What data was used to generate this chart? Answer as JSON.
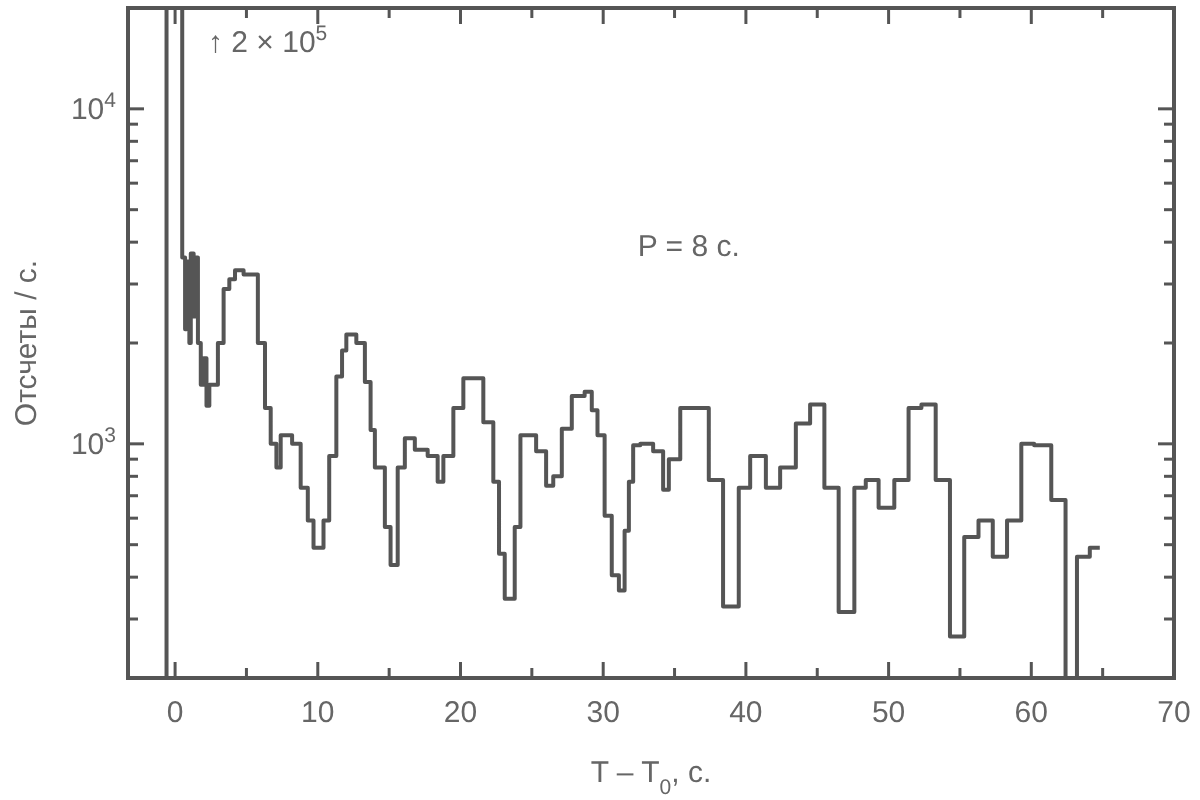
{
  "chart_data": {
    "type": "step",
    "xlabel": "T – T$_{0}$, с.",
    "ylabel": "Отсчеты / с.",
    "annotations": [
      "↑ 2 × 10$^{5}$",
      "P = 8 с."
    ],
    "log": "y",
    "grid": false,
    "color": "#555555",
    "xlim": [
      -3.3,
      70
    ],
    "ylim": [
      200,
      20000
    ],
    "xticks": [
      0,
      {
        "value": 5,
        "label": null
      },
      10,
      {
        "value": 15,
        "label": null
      },
      20,
      {
        "value": 25,
        "label": null
      },
      30,
      {
        "value": 35,
        "label": null
      },
      40,
      {
        "value": 45,
        "label": null
      },
      50,
      {
        "value": 55,
        "label": null
      },
      60,
      {
        "value": 65,
        "label": null
      },
      70
    ],
    "yticks": [
      {
        "value": 200,
        "label": null
      },
      {
        "value": 300,
        "label": null
      },
      {
        "value": 400,
        "label": null
      },
      {
        "value": 500,
        "label": null
      },
      {
        "value": 600,
        "label": null
      },
      {
        "value": 700,
        "label": null
      },
      {
        "value": 800,
        "label": null
      },
      {
        "value": 900,
        "label": null
      },
      {
        "value": 1000,
        "label": "10$^{3}$"
      },
      {
        "value": 2000,
        "label": null
      },
      {
        "value": 3000,
        "label": null
      },
      {
        "value": 4000,
        "label": null
      },
      {
        "value": 5000,
        "label": null
      },
      {
        "value": 6000,
        "label": null
      },
      {
        "value": 7000,
        "label": null
      },
      {
        "value": 8000,
        "label": null
      },
      {
        "value": 9000,
        "label": null
      },
      {
        "value": 10000,
        "label": "10$^{4}$"
      }
    ],
    "ref_lines": [
      {
        "axis": "x",
        "value": -0.6,
        "color": "#555555"
      }
    ],
    "x": [
      0.1,
      0.5,
      0.7,
      0.8,
      1.0,
      1.1,
      1.3,
      1.4,
      1.6,
      1.8,
      2.0,
      2.2,
      2.4,
      2.7,
      3.0,
      3.4,
      3.8,
      4.2,
      4.8,
      5.4,
      5.8,
      6.3,
      6.7,
      7.1,
      7.4,
      8.2,
      8.8,
      9.3,
      9.7,
      10.4,
      10.8,
      11.3,
      11.7,
      12.0,
      12.7,
      13.3,
      13.7,
      14.0,
      14.7,
      15.1,
      15.6,
      16.1,
      16.8,
      17.7,
      18.4,
      18.8,
      19.5,
      20.2,
      20.9,
      21.6,
      22.3,
      22.7,
      23.1,
      23.8,
      24.2,
      25.3,
      26.0,
      26.5,
      27.1,
      27.8,
      28.7,
      29.2,
      29.6,
      30.1,
      30.6,
      31.1,
      31.5,
      31.8,
      32.1,
      32.6,
      33.5,
      34.2,
      34.6,
      35.4,
      37.4,
      38.4,
      39.5,
      40.3,
      41.4,
      42.4,
      43.5,
      44.5,
      45.5,
      46.5,
      47.6,
      48.4,
      49.3,
      50.4,
      51.4,
      52.3,
      53.3,
      54.3,
      55.3,
      56.3,
      57.3,
      58.3,
      59.3,
      60.2,
      61.4,
      62.4,
      63.2,
      64.1,
      64.8
    ],
    "values": [
      20000,
      3600,
      2200,
      3500,
      2000,
      3700,
      2400,
      3600,
      2000,
      1500,
      1800,
      1300,
      1500,
      1500,
      2000,
      2900,
      3100,
      3300,
      3200,
      3200,
      2000,
      1280,
      1000,
      850,
      1060,
      1000,
      740,
      590,
      490,
      590,
      920,
      1590,
      1900,
      2120,
      2000,
      1530,
      1100,
      850,
      565,
      435,
      850,
      1040,
      960,
      920,
      770,
      920,
      1280,
      1570,
      1570,
      1160,
      770,
      470,
      345,
      565,
      1060,
      950,
      750,
      800,
      1110,
      1390,
      1430,
      1260,
      1060,
      610,
      405,
      365,
      550,
      770,
      990,
      1000,
      950,
      730,
      900,
      1280,
      780,
      327,
      740,
      920,
      740,
      850,
      1150,
      1310,
      740,
      315,
      740,
      780,
      645,
      780,
      1280,
      1310,
      780,
      266,
      527,
      590,
      460,
      590,
      1000,
      990,
      680,
      200,
      460,
      490,
      490
    ]
  }
}
